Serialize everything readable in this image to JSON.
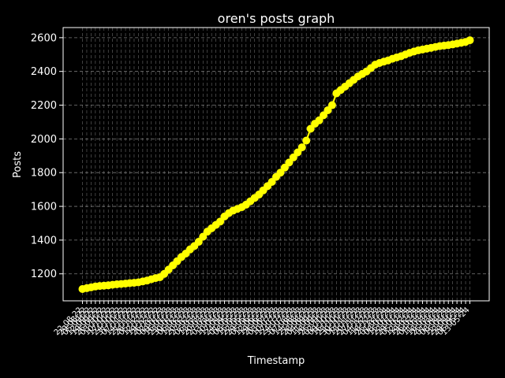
{
  "chart_data": {
    "type": "line",
    "title": "oren's posts graph",
    "xlabel": "Timestamp",
    "ylabel": "Posts",
    "ylim": [
      1040,
      2660
    ],
    "yticks": [
      1200,
      1400,
      1600,
      1800,
      2000,
      2200,
      2400,
      2600
    ],
    "grid": true,
    "line_color": "#ffff00",
    "background": "#000000",
    "x": [
      "22-08-22",
      "29-08-22",
      "05-09-22",
      "12-09-22",
      "19-09-22",
      "26-09-22",
      "03-10-22",
      "10-10-22",
      "17-10-22",
      "24-10-22",
      "31-10-22",
      "07-11-22",
      "14-11-22",
      "21-11-22",
      "28-11-22",
      "05-12-22",
      "12-12-22",
      "19-12-22",
      "26-12-22",
      "02-01-23",
      "09-01-23",
      "16-01-23",
      "23-01-23",
      "30-01-23",
      "06-02-23",
      "13-02-23",
      "20-02-23",
      "27-02-23",
      "06-03-23",
      "13-03-23",
      "20-03-23",
      "27-03-23",
      "03-04-23",
      "10-04-23",
      "17-04-23",
      "24-04-23",
      "01-05-23",
      "08-05-23",
      "15-05-23",
      "22-05-23",
      "29-05-23",
      "05-06-23",
      "12-06-23",
      "19-06-23",
      "26-06-23",
      "03-07-23",
      "10-07-23",
      "17-07-23",
      "24-07-23",
      "31-07-23",
      "07-08-23",
      "14-08-23",
      "21-08-23",
      "28-08-23",
      "04-09-23",
      "11-09-23",
      "18-09-23",
      "25-09-23",
      "02-10-23",
      "09-10-23",
      "16-10-23",
      "23-10-23",
      "30-10-23",
      "06-11-23",
      "13-11-23",
      "20-11-23",
      "27-11-23",
      "04-12-23",
      "11-12-23",
      "18-12-23",
      "25-12-23",
      "01-01-24",
      "08-01-24",
      "15-01-24",
      "22-01-24",
      "29-01-24",
      "05-02-24",
      "12-02-24",
      "19-02-24",
      "26-02-24",
      "04-03-24",
      "11-03-24",
      "18-03-24",
      "25-03-24",
      "01-04-24",
      "08-04-24",
      "15-04-24",
      "22-04-24",
      "29-04-24",
      "06-05-24",
      "13-05-24"
    ],
    "series": [
      {
        "values": [
          1110,
          1115,
          1120,
          1125,
          1128,
          1130,
          1132,
          1135,
          1138,
          1140,
          1142,
          1145,
          1147,
          1150,
          1155,
          1160,
          1168,
          1175,
          1180,
          1200,
          1225,
          1250,
          1275,
          1300,
          1320,
          1345,
          1365,
          1390,
          1420,
          1450,
          1470,
          1490,
          1510,
          1540,
          1560,
          1575,
          1585,
          1595,
          1610,
          1630,
          1650,
          1670,
          1695,
          1720,
          1745,
          1775,
          1800,
          1830,
          1860,
          1890,
          1920,
          1950,
          1990,
          2060,
          2090,
          2110,
          2140,
          2170,
          2200,
          2270,
          2290,
          2310,
          2330,
          2350,
          2370,
          2385,
          2400,
          2420,
          2440,
          2450,
          2458,
          2465,
          2475,
          2483,
          2490,
          2500,
          2510,
          2518,
          2525,
          2530,
          2535,
          2540,
          2545,
          2550,
          2553,
          2556,
          2560,
          2565,
          2570,
          2575,
          2585
        ]
      }
    ]
  }
}
